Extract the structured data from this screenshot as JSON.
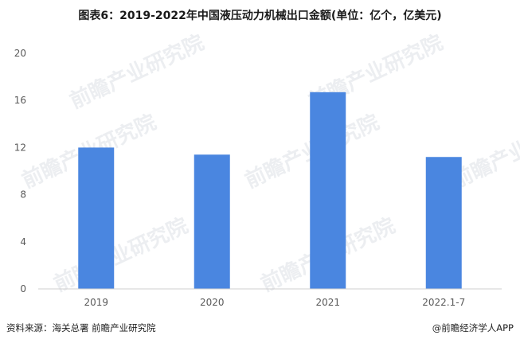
{
  "title": "图表6：2019-2022年中国液压动力机械出口金额(单位：亿个，亿美元)",
  "chart_data": {
    "type": "bar",
    "categories": [
      "2019",
      "2020",
      "2021",
      "2022.1-7"
    ],
    "values": [
      12.0,
      11.4,
      16.7,
      11.2
    ],
    "ylim": [
      0,
      20
    ],
    "yticks": [
      0,
      4,
      8,
      12,
      16,
      20
    ],
    "color": "#4a86e0",
    "grid": false
  },
  "footer": {
    "source": "资料来源：海关总署 前瞻产业研究院",
    "brand": "@前瞻经济学人APP"
  },
  "watermark": "前瞻产业研究院"
}
